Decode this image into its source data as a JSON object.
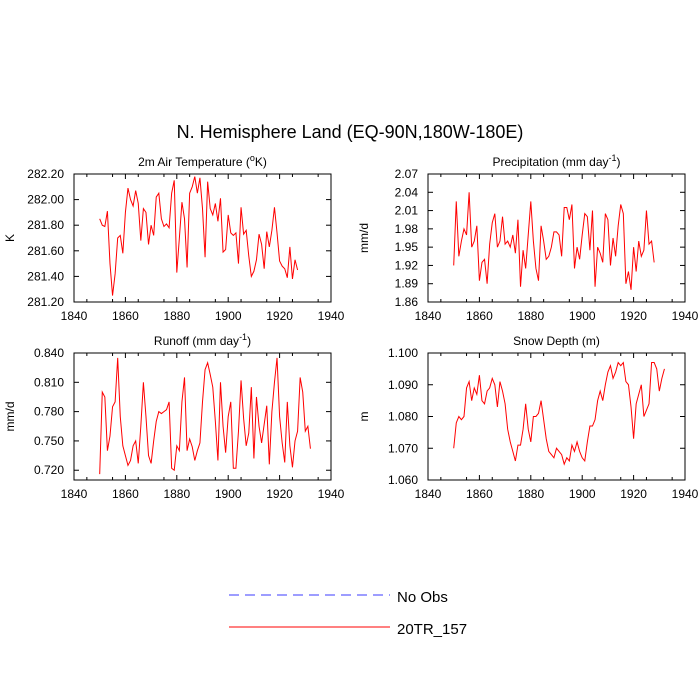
{
  "figure": {
    "title": "N. Hemisphere Land (EQ-90N,180W-180E)"
  },
  "colors": {
    "series": "#ff0000",
    "no_obs": "#3b3bff",
    "axis": "#000000"
  },
  "legend": {
    "items": [
      {
        "label": "No Obs",
        "color": "#3b3bff",
        "style": "dashed"
      },
      {
        "label": "20TR_157",
        "color": "#ff0000",
        "style": "solid"
      }
    ]
  },
  "chart_data": [
    {
      "id": "tas",
      "type": "line",
      "title": "2m Air Temperature (",
      "title_sup": "o",
      "title_after": "K)",
      "ylabel": "K",
      "xlim": [
        1840,
        1940
      ],
      "ylim": [
        281.2,
        282.2
      ],
      "xticks": [
        "1840",
        "1860",
        "1880",
        "1900",
        "1920",
        "1940"
      ],
      "yticks": [
        "281.20",
        "281.40",
        "281.60",
        "281.80",
        "282.00",
        "282.20"
      ],
      "series": [
        {
          "name": "20TR_157",
          "x_start": 1850,
          "values": [
            281.85,
            281.8,
            281.79,
            281.91,
            281.5,
            281.25,
            281.42,
            281.7,
            281.72,
            281.58,
            281.9,
            282.09,
            282.0,
            281.95,
            282.07,
            281.97,
            281.68,
            281.93,
            281.9,
            281.65,
            281.8,
            281.72,
            282.02,
            282.05,
            281.85,
            281.79,
            281.81,
            281.78,
            282.05,
            282.15,
            281.43,
            281.7,
            281.98,
            281.85,
            281.47,
            282.05,
            282.1,
            282.18,
            282.05,
            282.17,
            281.93,
            281.55,
            282.14,
            281.93,
            281.88,
            281.97,
            281.83,
            282.01,
            281.59,
            281.61,
            281.88,
            281.74,
            281.72,
            281.74,
            281.5,
            281.94,
            281.73,
            281.76,
            281.56,
            281.4,
            281.44,
            281.53,
            281.73,
            281.65,
            281.46,
            281.75,
            281.63,
            281.76,
            281.94,
            281.74,
            281.52,
            281.48,
            281.46,
            281.39,
            281.63,
            281.38,
            281.53,
            281.45
          ]
        }
      ]
    },
    {
      "id": "pr",
      "type": "line",
      "title": "Precipitation (mm day",
      "title_sup": "-1",
      "title_after": ")",
      "ylabel": "mm/d",
      "xlim": [
        1840,
        1940
      ],
      "ylim": [
        1.86,
        2.07
      ],
      "xticks": [
        "1840",
        "1860",
        "1880",
        "1900",
        "1920",
        "1940"
      ],
      "yticks": [
        "1.86",
        "1.89",
        "1.92",
        "1.95",
        "1.98",
        "2.01",
        "2.04",
        "2.07"
      ],
      "series": [
        {
          "name": "20TR_157",
          "x_start": 1850,
          "values": [
            1.92,
            2.025,
            1.935,
            1.96,
            1.98,
            1.97,
            2.04,
            1.95,
            1.96,
            1.985,
            1.895,
            1.925,
            1.93,
            1.89,
            1.955,
            1.99,
            2.005,
            1.95,
            1.96,
            2.0,
            1.955,
            1.96,
            1.95,
            1.97,
            1.94,
            1.995,
            1.885,
            1.945,
            1.915,
            1.97,
            2.025,
            1.96,
            1.915,
            1.895,
            1.985,
            1.96,
            1.93,
            1.935,
            1.95,
            1.975,
            1.975,
            1.97,
            1.935,
            2.015,
            2.015,
            1.995,
            2.02,
            1.915,
            1.95,
            1.93,
            1.97,
            2.005,
            2.0,
            1.945,
            2.01,
            1.885,
            1.95,
            1.94,
            1.925,
            2.005,
            1.995,
            1.92,
            1.965,
            1.935,
            1.985,
            2.02,
            2.005,
            1.89,
            1.91,
            1.88,
            1.95,
            1.91,
            1.96,
            1.935,
            1.945,
            2.01,
            1.955,
            1.96,
            1.925
          ]
        }
      ]
    },
    {
      "id": "mrro",
      "type": "line",
      "title": "Runoff (mm day",
      "title_sup": "-1",
      "title_after": ")",
      "ylabel": "mm/d",
      "xlim": [
        1840,
        1940
      ],
      "ylim": [
        0.71,
        0.84
      ],
      "xticks": [
        "1840",
        "1860",
        "1880",
        "1900",
        "1920",
        "1940"
      ],
      "yticks": [
        "0.720",
        "0.750",
        "0.780",
        "0.810",
        "0.840"
      ],
      "series": [
        {
          "name": "20TR_157",
          "x_start": 1850,
          "values": [
            0.716,
            0.8,
            0.795,
            0.74,
            0.755,
            0.785,
            0.79,
            0.835,
            0.775,
            0.745,
            0.735,
            0.725,
            0.73,
            0.745,
            0.75,
            0.727,
            0.765,
            0.81,
            0.775,
            0.735,
            0.727,
            0.75,
            0.77,
            0.78,
            0.778,
            0.78,
            0.782,
            0.79,
            0.722,
            0.72,
            0.745,
            0.74,
            0.79,
            0.815,
            0.74,
            0.752,
            0.744,
            0.73,
            0.74,
            0.748,
            0.79,
            0.823,
            0.83,
            0.818,
            0.805,
            0.77,
            0.73,
            0.81,
            0.765,
            0.738,
            0.775,
            0.79,
            0.722,
            0.722,
            0.76,
            0.812,
            0.773,
            0.745,
            0.758,
            0.805,
            0.732,
            0.795,
            0.765,
            0.748,
            0.767,
            0.786,
            0.726,
            0.78,
            0.81,
            0.835,
            0.775,
            0.748,
            0.728,
            0.79,
            0.745,
            0.723,
            0.75,
            0.76,
            0.815,
            0.8,
            0.76,
            0.765,
            0.742
          ]
        }
      ]
    },
    {
      "id": "snd",
      "type": "line",
      "title": "Snow Depth (m)",
      "title_sup": "",
      "title_after": "",
      "ylabel": "m",
      "xlim": [
        1840,
        1940
      ],
      "ylim": [
        1.06,
        1.1
      ],
      "xticks": [
        "1840",
        "1860",
        "1880",
        "1900",
        "1920",
        "1940"
      ],
      "yticks": [
        "1.060",
        "1.070",
        "1.080",
        "1.090",
        "1.100"
      ],
      "series": [
        {
          "name": "20TR_157",
          "x_start": 1850,
          "values": [
            1.07,
            1.078,
            1.08,
            1.079,
            1.08,
            1.089,
            1.091,
            1.085,
            1.089,
            1.087,
            1.093,
            1.085,
            1.084,
            1.088,
            1.089,
            1.092,
            1.09,
            1.083,
            1.091,
            1.088,
            1.084,
            1.076,
            1.072,
            1.069,
            1.066,
            1.071,
            1.071,
            1.076,
            1.084,
            1.076,
            1.072,
            1.08,
            1.08,
            1.081,
            1.085,
            1.079,
            1.073,
            1.069,
            1.068,
            1.067,
            1.07,
            1.069,
            1.068,
            1.065,
            1.067,
            1.066,
            1.071,
            1.069,
            1.072,
            1.069,
            1.067,
            1.066,
            1.072,
            1.077,
            1.077,
            1.079,
            1.085,
            1.088,
            1.085,
            1.09,
            1.094,
            1.096,
            1.092,
            1.094,
            1.097,
            1.096,
            1.097,
            1.091,
            1.09,
            1.083,
            1.073,
            1.084,
            1.087,
            1.09,
            1.08,
            1.082,
            1.084,
            1.097,
            1.097,
            1.095,
            1.088,
            1.092,
            1.095
          ]
        }
      ]
    }
  ]
}
